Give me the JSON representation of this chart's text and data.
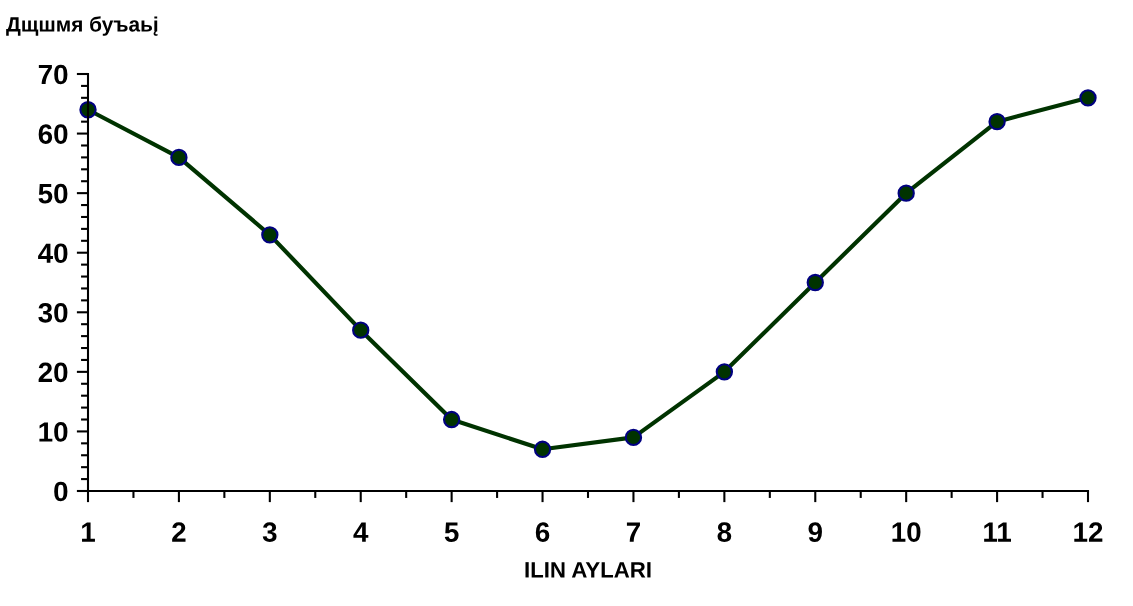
{
  "chart_data": {
    "type": "line",
    "ylabel": "Дщшмя буъаьį",
    "xlabel": "ILIN AYLARI",
    "x": [
      1,
      2,
      3,
      4,
      5,
      6,
      7,
      8,
      9,
      10,
      11,
      12
    ],
    "series": [
      {
        "color": "#003300",
        "values": [
          64,
          56,
          43,
          27,
          12,
          7,
          9,
          20,
          35,
          50,
          62,
          66
        ]
      }
    ],
    "xlim": [
      1,
      12
    ],
    "xticks": [
      1,
      2,
      3,
      4,
      5,
      6,
      7,
      8,
      9,
      10,
      11,
      12
    ],
    "ylim": [
      0,
      70
    ],
    "yticks": [
      0,
      10,
      20,
      30,
      40,
      50,
      60,
      70
    ],
    "grid": false,
    "legend": false,
    "marker": "circle",
    "line_style": "solid"
  }
}
